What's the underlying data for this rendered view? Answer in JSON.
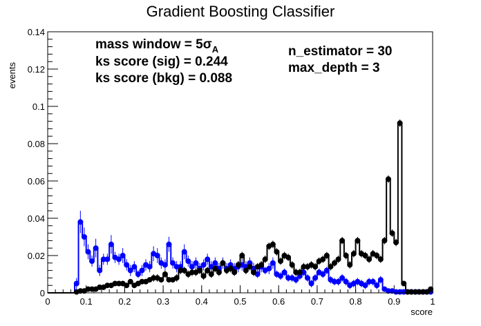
{
  "chart_data": {
    "type": "scatter",
    "title": "Gradient Boosting Classifier",
    "xlabel": "score",
    "ylabel": "events",
    "xlim": [
      0,
      1
    ],
    "ylim": [
      0,
      0.14
    ],
    "x_ticks": [
      "0",
      "0.1",
      "0.2",
      "0.3",
      "0.4",
      "0.5",
      "0.6",
      "0.7",
      "0.8",
      "0.9",
      "1"
    ],
    "y_ticks": [
      "0",
      "0.02",
      "0.04",
      "0.06",
      "0.08",
      "0.1",
      "0.12",
      "0.14"
    ],
    "grid": false,
    "annotations": {
      "mass_window_prefix": "mass window = 5",
      "mass_window_symbol": "σ",
      "mass_window_subscript": "A",
      "ks_sig": "ks score (sig) = 0.244",
      "ks_bkg": "ks score (bkg) = 0.088",
      "n_estimator": "n_estimator = 30",
      "max_depth": "max_depth = 3"
    },
    "series": [
      {
        "color": "#0000ff",
        "x": [
          0.075,
          0.085,
          0.095,
          0.105,
          0.115,
          0.125,
          0.135,
          0.145,
          0.155,
          0.165,
          0.175,
          0.185,
          0.195,
          0.205,
          0.215,
          0.225,
          0.235,
          0.245,
          0.255,
          0.265,
          0.275,
          0.285,
          0.295,
          0.305,
          0.315,
          0.325,
          0.335,
          0.345,
          0.355,
          0.365,
          0.375,
          0.385,
          0.395,
          0.405,
          0.415,
          0.425,
          0.435,
          0.445,
          0.455,
          0.465,
          0.475,
          0.485,
          0.495,
          0.505,
          0.515,
          0.525,
          0.535,
          0.545,
          0.555,
          0.565,
          0.575,
          0.585,
          0.595,
          0.605,
          0.615,
          0.625,
          0.635,
          0.645,
          0.655,
          0.665,
          0.675,
          0.685,
          0.695,
          0.705,
          0.715,
          0.725,
          0.735,
          0.745,
          0.755,
          0.765,
          0.775,
          0.785,
          0.795,
          0.805,
          0.815,
          0.825,
          0.835,
          0.845,
          0.855,
          0.865,
          0.875,
          0.885,
          0.895,
          0.905,
          0.915,
          0.925,
          0.935,
          0.945,
          0.955,
          0.965,
          0.975,
          0.985,
          0.995
        ],
        "y": [
          0.005,
          0.038,
          0.03,
          0.022,
          0.017,
          0.024,
          0.012,
          0.018,
          0.018,
          0.026,
          0.019,
          0.018,
          0.02,
          0.015,
          0.012,
          0.014,
          0.01,
          0.012,
          0.015,
          0.014,
          0.021,
          0.02,
          0.016,
          0.015,
          0.026,
          0.016,
          0.014,
          0.014,
          0.022,
          0.017,
          0.014,
          0.016,
          0.013,
          0.015,
          0.018,
          0.014,
          0.016,
          0.013,
          0.016,
          0.013,
          0.015,
          0.013,
          0.014,
          0.015,
          0.014,
          0.016,
          0.013,
          0.01,
          0.014,
          0.012,
          0.013,
          0.016,
          0.01,
          0.009,
          0.011,
          0.008,
          0.008,
          0.007,
          0.009,
          0.011,
          0.008,
          0.005,
          0.008,
          0.011,
          0.01,
          0.012,
          0.007,
          0.006,
          0.006,
          0.008,
          0.006,
          0.004,
          0.005,
          0.006,
          0.005,
          0.004,
          0.006,
          0.006,
          0.004,
          0.007,
          0.002,
          0.001,
          0.001,
          0.0005,
          0.0005,
          0.0005,
          0.0005,
          0.0005,
          0.0005,
          0.0005,
          0.0005,
          0.0005,
          0.0005
        ],
        "errors": [
          0.003,
          0.006,
          0.005,
          0.004,
          0.003,
          0.005,
          0.003,
          0.003,
          0.003,
          0.005,
          0.003,
          0.003,
          0.004,
          0.003,
          0.003,
          0.003,
          0.002,
          0.003,
          0.003,
          0.003,
          0.004,
          0.004,
          0.003,
          0.003,
          0.004,
          0.003,
          0.003,
          0.003,
          0.004,
          0.003,
          0.003,
          0.003,
          0.003,
          0.003,
          0.003,
          0.003,
          0.003,
          0.003,
          0.003,
          0.003,
          0.003,
          0.003,
          0.003,
          0.003,
          0.003,
          0.003,
          0.003,
          0.002,
          0.003,
          0.002,
          0.003,
          0.003,
          0.002,
          0.002,
          0.002,
          0.002,
          0.002,
          0.002,
          0.002,
          0.002,
          0.002,
          0.002,
          0.002,
          0.002,
          0.002,
          0.002,
          0.002,
          0.002,
          0.002,
          0.002,
          0.002,
          0.002,
          0.002,
          0.002,
          0.002,
          0.002,
          0.002,
          0.002,
          0.002,
          0.002,
          0.001,
          0.001,
          0.001,
          0.0005,
          0.0005,
          0.0005,
          0.0005,
          0.0005,
          0.0005,
          0.0005,
          0.0005,
          0.0005,
          0.0005
        ]
      },
      {
        "color": "#000000",
        "x": [
          0.075,
          0.085,
          0.095,
          0.105,
          0.115,
          0.125,
          0.135,
          0.145,
          0.155,
          0.165,
          0.175,
          0.185,
          0.195,
          0.205,
          0.215,
          0.225,
          0.235,
          0.245,
          0.255,
          0.265,
          0.275,
          0.285,
          0.295,
          0.305,
          0.315,
          0.325,
          0.335,
          0.345,
          0.355,
          0.365,
          0.375,
          0.385,
          0.395,
          0.405,
          0.415,
          0.425,
          0.435,
          0.445,
          0.455,
          0.465,
          0.475,
          0.485,
          0.495,
          0.505,
          0.515,
          0.525,
          0.535,
          0.545,
          0.555,
          0.565,
          0.575,
          0.585,
          0.595,
          0.605,
          0.615,
          0.625,
          0.635,
          0.645,
          0.655,
          0.665,
          0.675,
          0.685,
          0.695,
          0.705,
          0.715,
          0.725,
          0.735,
          0.745,
          0.755,
          0.765,
          0.775,
          0.785,
          0.795,
          0.805,
          0.815,
          0.825,
          0.835,
          0.845,
          0.855,
          0.865,
          0.875,
          0.885,
          0.895,
          0.905,
          0.915,
          0.925,
          0.935,
          0.945,
          0.955,
          0.965,
          0.975,
          0.985,
          0.995
        ],
        "y": [
          0.0005,
          0.001,
          0.001,
          0.002,
          0.002,
          0.002,
          0.003,
          0.003,
          0.004,
          0.004,
          0.005,
          0.005,
          0.005,
          0.004,
          0.006,
          0.004,
          0.005,
          0.006,
          0.006,
          0.007,
          0.008,
          0.008,
          0.007,
          0.01,
          0.007,
          0.007,
          0.008,
          0.012,
          0.012,
          0.01,
          0.011,
          0.011,
          0.012,
          0.009,
          0.012,
          0.01,
          0.013,
          0.011,
          0.016,
          0.012,
          0.013,
          0.011,
          0.015,
          0.02,
          0.012,
          0.014,
          0.011,
          0.014,
          0.015,
          0.018,
          0.025,
          0.026,
          0.022,
          0.017,
          0.02,
          0.019,
          0.015,
          0.011,
          0.011,
          0.014,
          0.014,
          0.015,
          0.014,
          0.017,
          0.018,
          0.02,
          0.014,
          0.016,
          0.018,
          0.028,
          0.02,
          0.015,
          0.021,
          0.028,
          0.021,
          0.02,
          0.018,
          0.021,
          0.02,
          0.018,
          0.028,
          0.061,
          0.032,
          0.027,
          0.091,
          0.005,
          0.0005,
          0.0005,
          0.0005,
          0.0005,
          0.0005,
          0.0005,
          0.002
        ],
        "errors": [
          0.0005,
          0.001,
          0.001,
          0.001,
          0.001,
          0.001,
          0.001,
          0.001,
          0.001,
          0.001,
          0.001,
          0.001,
          0.001,
          0.001,
          0.001,
          0.001,
          0.001,
          0.001,
          0.001,
          0.001,
          0.002,
          0.002,
          0.001,
          0.002,
          0.001,
          0.001,
          0.002,
          0.002,
          0.002,
          0.002,
          0.002,
          0.002,
          0.002,
          0.002,
          0.002,
          0.002,
          0.002,
          0.002,
          0.002,
          0.002,
          0.002,
          0.002,
          0.002,
          0.002,
          0.002,
          0.002,
          0.002,
          0.002,
          0.002,
          0.002,
          0.002,
          0.002,
          0.002,
          0.002,
          0.002,
          0.002,
          0.002,
          0.002,
          0.002,
          0.002,
          0.002,
          0.002,
          0.002,
          0.002,
          0.002,
          0.002,
          0.002,
          0.002,
          0.002,
          0.002,
          0.002,
          0.002,
          0.002,
          0.002,
          0.002,
          0.002,
          0.002,
          0.002,
          0.002,
          0.002,
          0.002,
          0.002,
          0.002,
          0.002,
          0.002,
          0.001,
          0.0005,
          0.0005,
          0.0005,
          0.0005,
          0.0005,
          0.0005,
          0.001
        ]
      }
    ]
  }
}
